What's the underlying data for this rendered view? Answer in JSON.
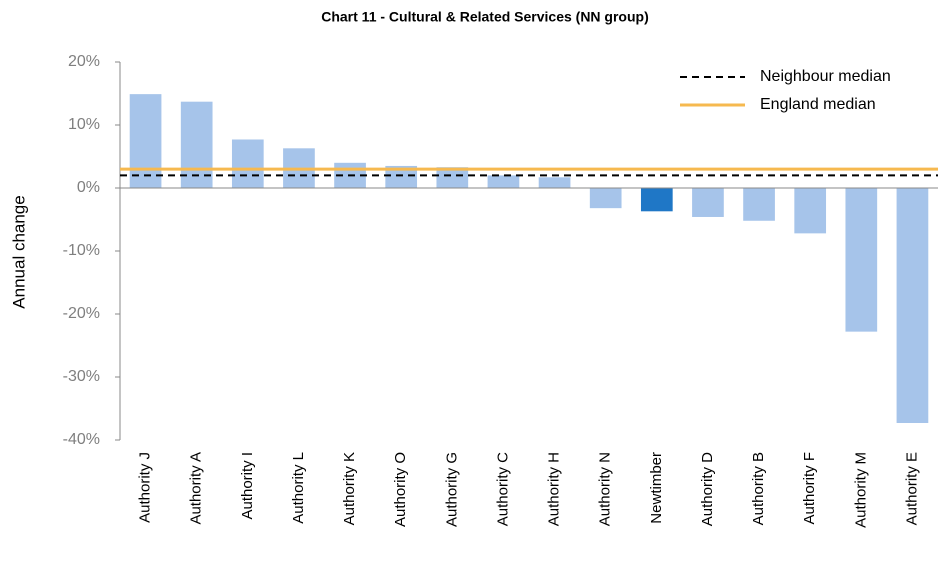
{
  "chart_data": {
    "type": "bar",
    "title": "Chart 11 - Cultural & Related Services (NN group)",
    "y_label": "Annual change",
    "categories": [
      "Authority J",
      "Authority A",
      "Authority I",
      "Authority L",
      "Authority K",
      "Authority O",
      "Authority G",
      "Authority C",
      "Authority H",
      "Authority N",
      "Newtimber",
      "Authority D",
      "Authority B",
      "Authority F",
      "Authority M",
      "Authority E"
    ],
    "values": [
      14.9,
      13.7,
      7.7,
      6.3,
      4.0,
      3.5,
      3.3,
      2.0,
      1.7,
      -3.2,
      -3.7,
      -4.6,
      -5.2,
      -7.2,
      -22.8,
      -37.3
    ],
    "colors": [
      "#a6c4ea",
      "#a6c4ea",
      "#a6c4ea",
      "#a6c4ea",
      "#a6c4ea",
      "#a6c4ea",
      "#a6c4ea",
      "#a6c4ea",
      "#a6c4ea",
      "#a6c4ea",
      "#1f77c6",
      "#a6c4ea",
      "#a6c4ea",
      "#a6c4ea",
      "#a6c4ea",
      "#a6c4ea"
    ],
    "reference_lines": [
      {
        "name": "Neighbour median",
        "value": 2.0,
        "color": "#000000",
        "style": "dashed"
      },
      {
        "name": "England median",
        "value": 3.0,
        "color": "#f6b94f",
        "style": "solid"
      }
    ],
    "ylim": [
      -40,
      20
    ],
    "yticks": [
      {
        "value": -40,
        "label": "-40%"
      },
      {
        "value": -30,
        "label": "-30%"
      },
      {
        "value": -20,
        "label": "-20%"
      },
      {
        "value": -10,
        "label": "-10%"
      },
      {
        "value": 0,
        "label": "0%"
      },
      {
        "value": 10,
        "label": "10%"
      },
      {
        "value": 20,
        "label": "20%"
      }
    ],
    "grid": false,
    "legend": "upper right"
  }
}
